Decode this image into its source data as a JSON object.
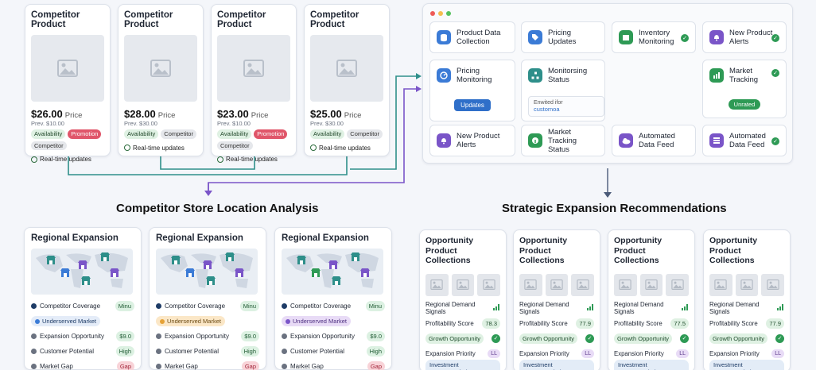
{
  "competitor_products": [
    {
      "title": "Competitor Product",
      "price": "$26.00",
      "price_suffix": "Price",
      "prev": "Prev. $10.00",
      "tags": [
        "Availability",
        "Promotion",
        "Competitor"
      ],
      "rt": "Real-time updates"
    },
    {
      "title": "Competitor Product",
      "price": "$28.00",
      "price_suffix": "Price",
      "prev": "Prev. $30.00",
      "tags": [
        "Availability",
        "Competitor"
      ],
      "rt": "Real-time updates"
    },
    {
      "title": "Competitor Product",
      "price": "$23.00",
      "price_suffix": "Price",
      "prev": "Prev. $10.00",
      "tags": [
        "Availability",
        "Promotion",
        "Competitor"
      ],
      "rt": "Real-time updates"
    },
    {
      "title": "Competitor Product",
      "price": "$25.00",
      "price_suffix": "Price",
      "prev": "Prev. $30.00",
      "tags": [
        "Availability",
        "Competitor"
      ],
      "rt": "Real-time updates"
    }
  ],
  "dashboard": {
    "modules": [
      {
        "label": "Product Data Collection",
        "icon": "database-icon"
      },
      {
        "label": "Pricing Updates",
        "icon": "tag-icon"
      },
      {
        "label": "Inventory Monitoring",
        "icon": "inventory-icon"
      },
      {
        "label": "New Product Alerts",
        "icon": "bell-icon"
      },
      {
        "label": "Pricing Monitoring",
        "icon": "gauge-icon",
        "button": "Updates"
      },
      {
        "label": "Monitorsing Status",
        "icon": "hierarchy-icon",
        "note1": "Enwited ifor",
        "note2": "customoa"
      },
      {
        "label": "Market Tracking",
        "icon": "chart-icon",
        "badge": "Unrated"
      },
      {
        "label": "New Product Alerts",
        "icon": "bell-icon"
      },
      {
        "label": "Market Tracking Status",
        "icon": "info-icon"
      },
      {
        "label": "Automated Data Feed",
        "icon": "cloud-icon"
      },
      {
        "label": "Automated Data Feed",
        "icon": "stack-icon"
      }
    ]
  },
  "sections": {
    "left_title": "Competitor Store Location Analysis",
    "right_title": "Strategic Expansion Recommendations"
  },
  "regional": [
    {
      "title": "Regional Expansion",
      "rows": [
        [
          "Competitor Coverage",
          "Minu"
        ],
        [
          "Underserved Market",
          ""
        ],
        [
          "Expansion Opportunity",
          "$9.0"
        ],
        [
          "Customer Potential",
          "High"
        ],
        [
          "Market Gap",
          "Gap"
        ]
      ]
    },
    {
      "title": "Regional Expansion",
      "rows": [
        [
          "Competitor Coverage",
          "Minu"
        ],
        [
          "Underserved Market",
          ""
        ],
        [
          "Expansion Opportunity",
          "$9.0"
        ],
        [
          "Customer Potential",
          "High"
        ],
        [
          "Market Gap",
          "Gap"
        ]
      ]
    },
    {
      "title": "Regional Expansion",
      "rows": [
        [
          "Competitor Coverage",
          "Minu"
        ],
        [
          "Underserved Market",
          ""
        ],
        [
          "Expansion Opportunity",
          "$9.0"
        ],
        [
          "Customer Potential",
          "High"
        ],
        [
          "Market Gap",
          "Gap"
        ]
      ]
    }
  ],
  "opportunities": [
    {
      "title": "Opportunity Product Collections",
      "demand": "Regional Demand Signals",
      "score_label": "Profitability Score",
      "score": "78.3",
      "growth": "Growth Opportunity",
      "priority": "Expansion Priority",
      "ll": "LL",
      "invest": "Investment recommendation"
    },
    {
      "title": "Opportunity Product Collections",
      "demand": "Regional Demand Signals",
      "score_label": "Profitability Score",
      "score": "77.9",
      "growth": "Growth Opportunity",
      "priority": "Expansion Priority",
      "ll": "LL",
      "invest": "Investment recommendation"
    },
    {
      "title": "Opportunity Product Collections",
      "demand": "Regional Demand Signals",
      "score_label": "Profitability Score",
      "score": "77.5",
      "growth": "Growth Opportunity",
      "priority": "Expansion Priority",
      "ll": "LL",
      "invest": "Investment recommendation"
    },
    {
      "title": "Opportunity Product Collections",
      "demand": "Regional Demand Signals",
      "score_label": "Profitability Score",
      "score": "77.9",
      "growth": "Growth Opportunity",
      "priority": "Expansion Priority",
      "ll": "LL",
      "invest": "Investment recommendation"
    }
  ],
  "colors": {
    "accent": "#3b7bd6",
    "green": "#2e9a55",
    "red": "#e0566a",
    "purple": "#7a55c8",
    "teal": "#2e8f8a"
  }
}
